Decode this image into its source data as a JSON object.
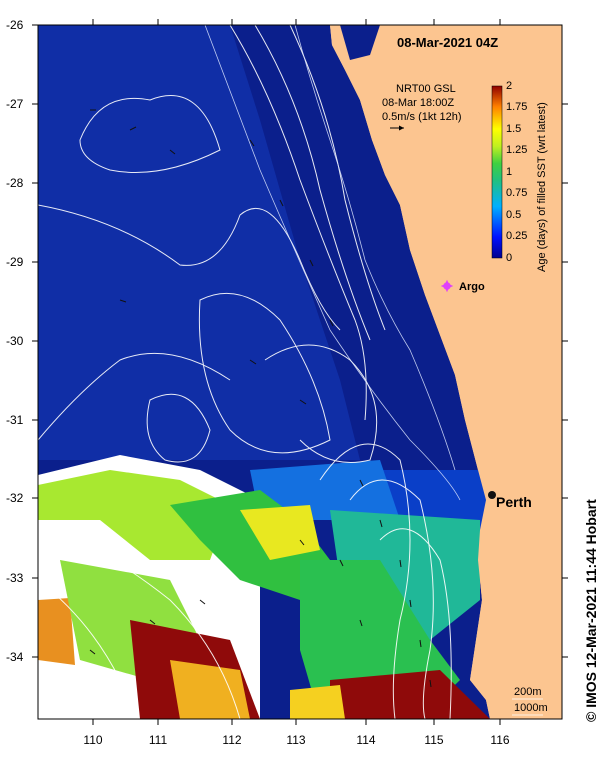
{
  "map": {
    "timestamp": "08-Mar-2021 04Z",
    "current_info": {
      "line1": "NRT00 GSL",
      "line2": "08-Mar 18:00Z",
      "line3": "0.5m/s (1kt 12h)"
    },
    "markers": [
      {
        "label": "Argo",
        "lon": 115.2,
        "lat": -29.33
      },
      {
        "label": "Perth",
        "lon": 115.85,
        "lat": -31.95
      }
    ],
    "depth_labels": [
      "200m",
      "1000m"
    ],
    "x_ticks": [
      "110",
      "111",
      "112",
      "113",
      "114",
      "115",
      "116"
    ],
    "y_ticks": [
      "-26",
      "-27",
      "-28",
      "-29",
      "-30",
      "-31",
      "-32",
      "-33",
      "-34"
    ],
    "colorbar": {
      "title": "Age (days) of filled SST (wrt latest)",
      "ticks": [
        "0",
        "0.25",
        "0.5",
        "0.75",
        "1",
        "1.25",
        "1.5",
        "1.75",
        "2"
      ]
    },
    "credit": "© IMOS 12-Mar-2021 11:44 Hobart",
    "colors": {
      "ocean_deep": "#0b1f8c",
      "land": "#fcc590",
      "argo_marker": "#e040fb"
    }
  }
}
